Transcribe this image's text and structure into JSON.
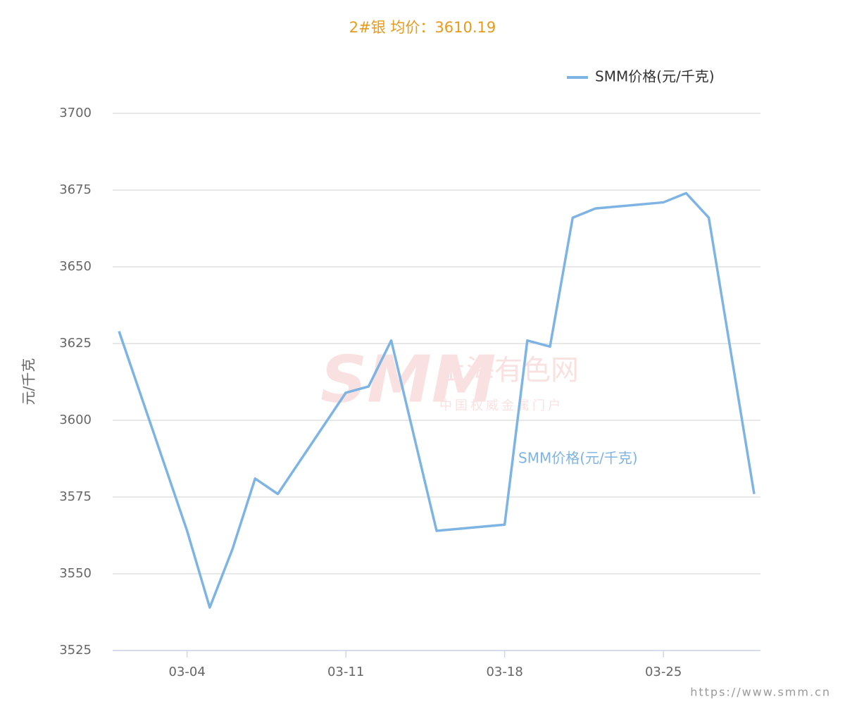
{
  "chart_data": {
    "type": "line",
    "title": "2#银 均价：3610.19",
    "y_label": "元/千克",
    "annotation": "SMM价格(元/千克)",
    "watermark": {
      "logo": "SMM",
      "name": "上海有色网",
      "slogan": "中国权威金属门户"
    },
    "source": "https://www.smm.cn",
    "x": [
      "03-01",
      "03-04",
      "03-05",
      "03-06",
      "03-07",
      "03-08",
      "03-11",
      "03-12",
      "03-13",
      "03-15",
      "03-18",
      "03-19",
      "03-20",
      "03-21",
      "03-22",
      "03-25",
      "03-26",
      "03-27",
      "03-29"
    ],
    "series": [
      {
        "name": "SMM价格(元/千克)",
        "color": "#7eb4e3",
        "values": [
          3629,
          3564,
          3539,
          3558,
          3581,
          3576,
          3609,
          3611,
          3626,
          3564,
          3566,
          3626,
          3624,
          3666,
          3669,
          3671,
          3674,
          3666,
          3576
        ]
      }
    ],
    "xticks": [
      "03-04",
      "03-11",
      "03-18",
      "03-25"
    ],
    "ylim": [
      3525,
      3700
    ],
    "yticks": [
      3525,
      3550,
      3575,
      3600,
      3625,
      3650,
      3675,
      3700
    ],
    "grid": true,
    "legend": "top-right"
  }
}
